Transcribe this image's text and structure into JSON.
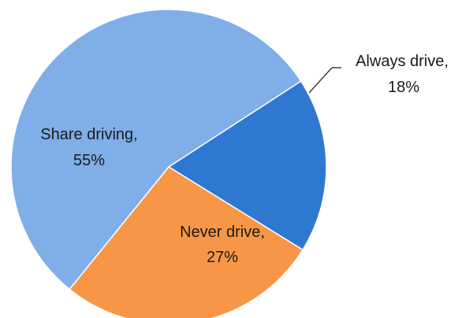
{
  "chart_data": {
    "type": "pie",
    "title": "",
    "slices": [
      {
        "name": "Always drive",
        "value": 18,
        "label_line1": "Always drive,",
        "label_line2": "18%",
        "color": "#2e78d2"
      },
      {
        "name": "Never drive",
        "value": 27,
        "label_line1": "Never drive,",
        "label_line2": "27%",
        "color": "#f79646"
      },
      {
        "name": "Share driving",
        "value": 55,
        "label_line1": "Share driving,",
        "label_line2": "55%",
        "color": "#7faee8"
      }
    ],
    "legend": "none"
  }
}
